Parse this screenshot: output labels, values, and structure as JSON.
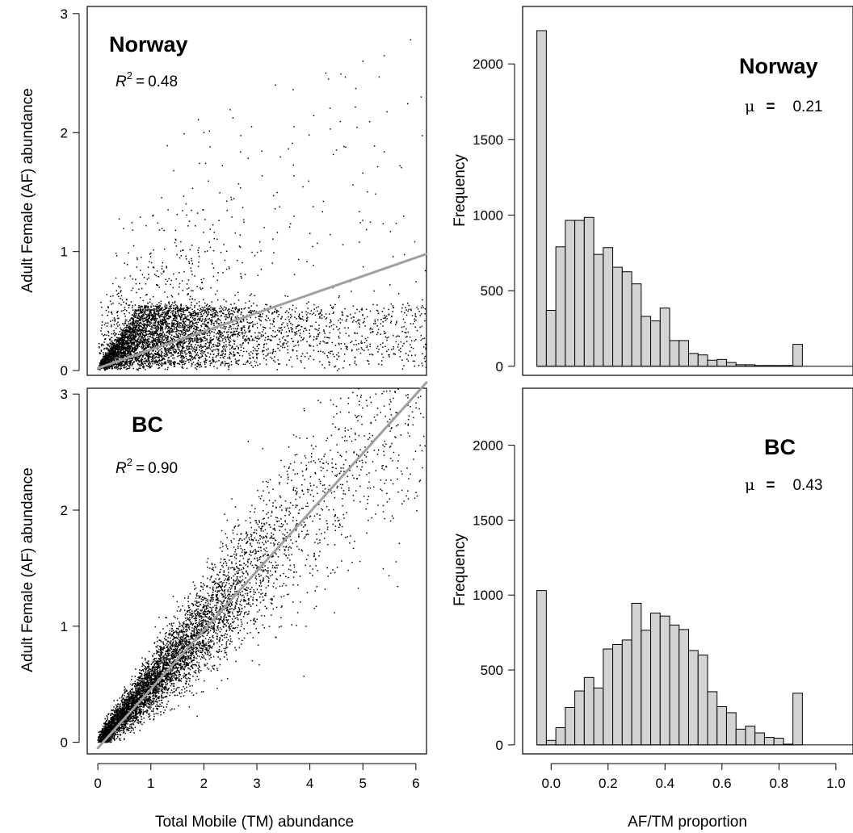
{
  "chart_data": [
    {
      "id": "norway-scatter",
      "type": "scatter",
      "panel_label": "Norway",
      "stat_symbol": "R",
      "stat_superscript": "2",
      "stat_equals": "=",
      "stat_value": "0.48",
      "xlabel": "",
      "ylabel": "Adult Female (AF) abundance",
      "xlim": [
        -0.2,
        6.2
      ],
      "ylim": [
        -0.04,
        3.06
      ],
      "xticks": [],
      "yticks": [
        0,
        1,
        2,
        3
      ],
      "fit_line": {
        "x": [
          0,
          6.2
        ],
        "y": [
          0.02,
          0.98
        ],
        "color": "#a0a0a0"
      },
      "point_cloud": {
        "n": 5200,
        "seed": 11,
        "dense_region": "0-3 x, 0-0.5 y",
        "max_x": 6.2,
        "max_y": 2.8
      },
      "extra_points": [
        [
          3.35,
          2.4
        ],
        [
          4.3,
          2.5
        ],
        [
          4.35,
          2.45
        ],
        [
          5.0,
          2.6
        ],
        [
          5.9,
          2.78
        ],
        [
          6.1,
          2.3
        ],
        [
          2.0,
          2.0
        ],
        [
          2.9,
          2.05
        ],
        [
          3.7,
          2.05
        ]
      ]
    },
    {
      "id": "norway-hist",
      "type": "bar",
      "panel_label": "Norway",
      "stat_symbol": "μ",
      "stat_equals": "=",
      "stat_value": "0.21",
      "xlabel": "",
      "ylabel": "Frequency",
      "xlim": [
        -0.1,
        1.06
      ],
      "ylim": [
        -60,
        2380
      ],
      "xticks": [],
      "yticks": [
        0,
        500,
        1000,
        1500,
        2000
      ],
      "bin_start": -0.05,
      "bin_width": 0.0333,
      "values": [
        2220,
        370,
        790,
        965,
        965,
        985,
        740,
        785,
        655,
        625,
        545,
        330,
        300,
        385,
        170,
        170,
        85,
        75,
        40,
        45,
        25,
        10,
        10,
        5,
        5,
        5,
        5,
        145
      ],
      "bar_color": "#d3d3d3"
    },
    {
      "id": "bc-scatter",
      "type": "scatter",
      "panel_label": "BC",
      "stat_symbol": "R",
      "stat_superscript": "2",
      "stat_equals": "=",
      "stat_value": "0.90",
      "xlabel": "Total Mobile (TM) abundance",
      "ylabel": "Adult Female (AF) abundance",
      "xlim": [
        -0.2,
        6.2
      ],
      "ylim": [
        -0.1,
        3.05
      ],
      "xticks": [
        0,
        1,
        2,
        3,
        4,
        5,
        6
      ],
      "yticks": [
        0,
        1,
        2,
        3
      ],
      "fit_line": {
        "x": [
          0,
          6.2
        ],
        "y": [
          -0.05,
          3.1
        ],
        "color": "#a0a0a0"
      },
      "point_cloud": {
        "n": 6000,
        "seed": 29,
        "dense_region": "along y = 0.5x",
        "max_x": 6.2,
        "max_y": 3.05
      }
    },
    {
      "id": "bc-hist",
      "type": "bar",
      "panel_label": "BC",
      "stat_symbol": "μ",
      "stat_equals": "=",
      "stat_value": "0.43",
      "xlabel": "AF/TM proportion",
      "ylabel": "Frequency",
      "xlim": [
        -0.1,
        1.06
      ],
      "ylim": [
        -60,
        2380
      ],
      "xticks": [
        0.0,
        0.2,
        0.4,
        0.6,
        0.8,
        1.0
      ],
      "xtick_labels": [
        "0.0",
        "0.2",
        "0.4",
        "0.6",
        "0.8",
        "1.0"
      ],
      "yticks": [
        0,
        500,
        1000,
        1500,
        2000
      ],
      "bin_start": -0.05,
      "bin_width": 0.0333,
      "values": [
        1030,
        30,
        115,
        250,
        360,
        450,
        380,
        640,
        670,
        700,
        945,
        765,
        880,
        860,
        800,
        770,
        630,
        600,
        355,
        255,
        215,
        105,
        125,
        80,
        50,
        45,
        5,
        345
      ],
      "bar_color": "#d3d3d3"
    }
  ]
}
